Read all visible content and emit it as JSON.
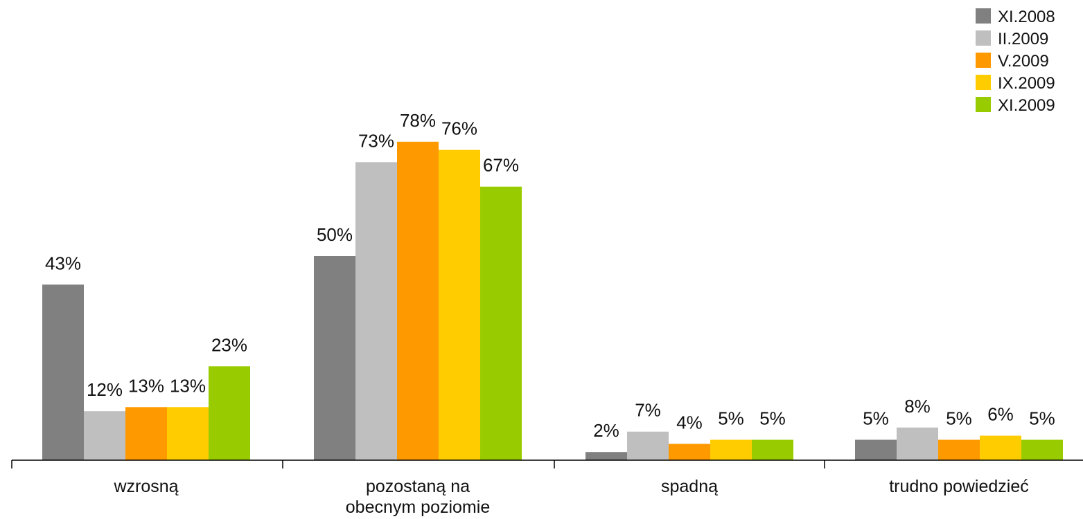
{
  "chart_data": {
    "type": "bar",
    "title": "",
    "xlabel": "",
    "ylabel": "",
    "ylim": [
      0,
      100
    ],
    "grid": false,
    "legend_position": "top-right",
    "categories": [
      [
        "wzrosną"
      ],
      [
        "pozostaną na",
        "obecnym poziomie"
      ],
      [
        "spadną"
      ],
      [
        "trudno powiedzieć"
      ]
    ],
    "series": [
      {
        "name": "XI.2008",
        "color": "#808080",
        "values": [
          43,
          50,
          2,
          5
        ],
        "labels": [
          "43%",
          "50%",
          "2%",
          "5%"
        ]
      },
      {
        "name": "II.2009",
        "color": "#bfbfbf",
        "values": [
          12,
          73,
          7,
          8
        ],
        "labels": [
          "12%",
          "73%",
          "7%",
          "8%"
        ]
      },
      {
        "name": "V.2009",
        "color": "#ff9900",
        "values": [
          13,
          78,
          4,
          5
        ],
        "labels": [
          "13%",
          "78%",
          "4%",
          "5%"
        ]
      },
      {
        "name": "IX.2009",
        "color": "#ffcc00",
        "values": [
          13,
          76,
          5,
          6
        ],
        "labels": [
          "13%",
          "76%",
          "5%",
          "6%"
        ]
      },
      {
        "name": "XI.2009",
        "color": "#99cc00",
        "values": [
          23,
          67,
          5,
          5
        ],
        "labels": [
          "23%",
          "67%",
          "5%",
          "5%"
        ]
      }
    ]
  }
}
